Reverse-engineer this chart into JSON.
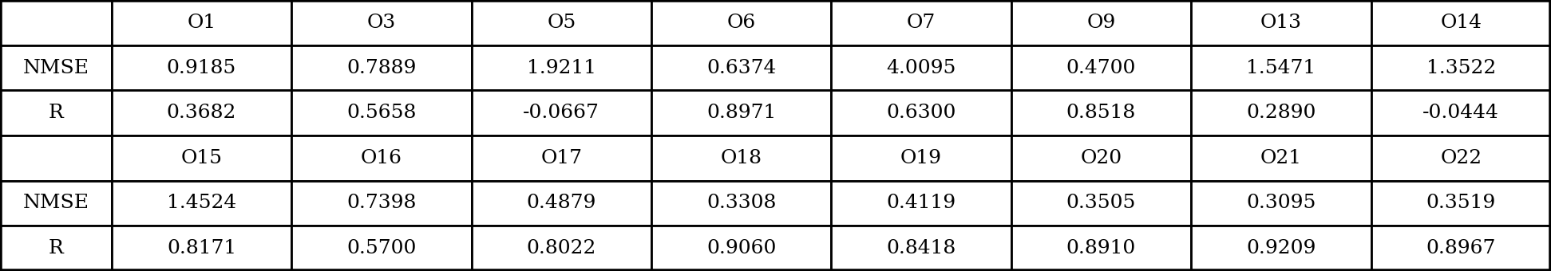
{
  "row1_headers": [
    "",
    "O1",
    "O3",
    "O5",
    "O6",
    "O7",
    "O9",
    "O13",
    "O14"
  ],
  "row2_nmse": [
    "0.9185",
    "0.7889",
    "1.9211",
    "0.6374",
    "4.0095",
    "0.4700",
    "1.5471",
    "1.3522"
  ],
  "row2_r": [
    "0.3682",
    "0.5658",
    "-0.0667",
    "0.8971",
    "0.6300",
    "0.8518",
    "0.2890",
    "-0.0444"
  ],
  "row3_headers": [
    "",
    "O15",
    "O16",
    "O17",
    "O18",
    "O19",
    "O20",
    "O21",
    "O22"
  ],
  "row4_nmse": [
    "1.4524",
    "0.7398",
    "0.4879",
    "0.3308",
    "0.4119",
    "0.3505",
    "0.3095",
    "0.3519"
  ],
  "row4_r": [
    "0.8171",
    "0.5700",
    "0.8022",
    "0.9060",
    "0.8418",
    "0.8910",
    "0.9209",
    "0.8967"
  ],
  "num_cols": 9,
  "col_width_ratios": [
    0.62,
    1,
    1,
    1,
    1,
    1,
    1,
    1,
    1
  ],
  "border_color": "#000000",
  "bg_color": "#ffffff",
  "text_color": "#000000",
  "fontsize": 18,
  "lw": 2.0
}
